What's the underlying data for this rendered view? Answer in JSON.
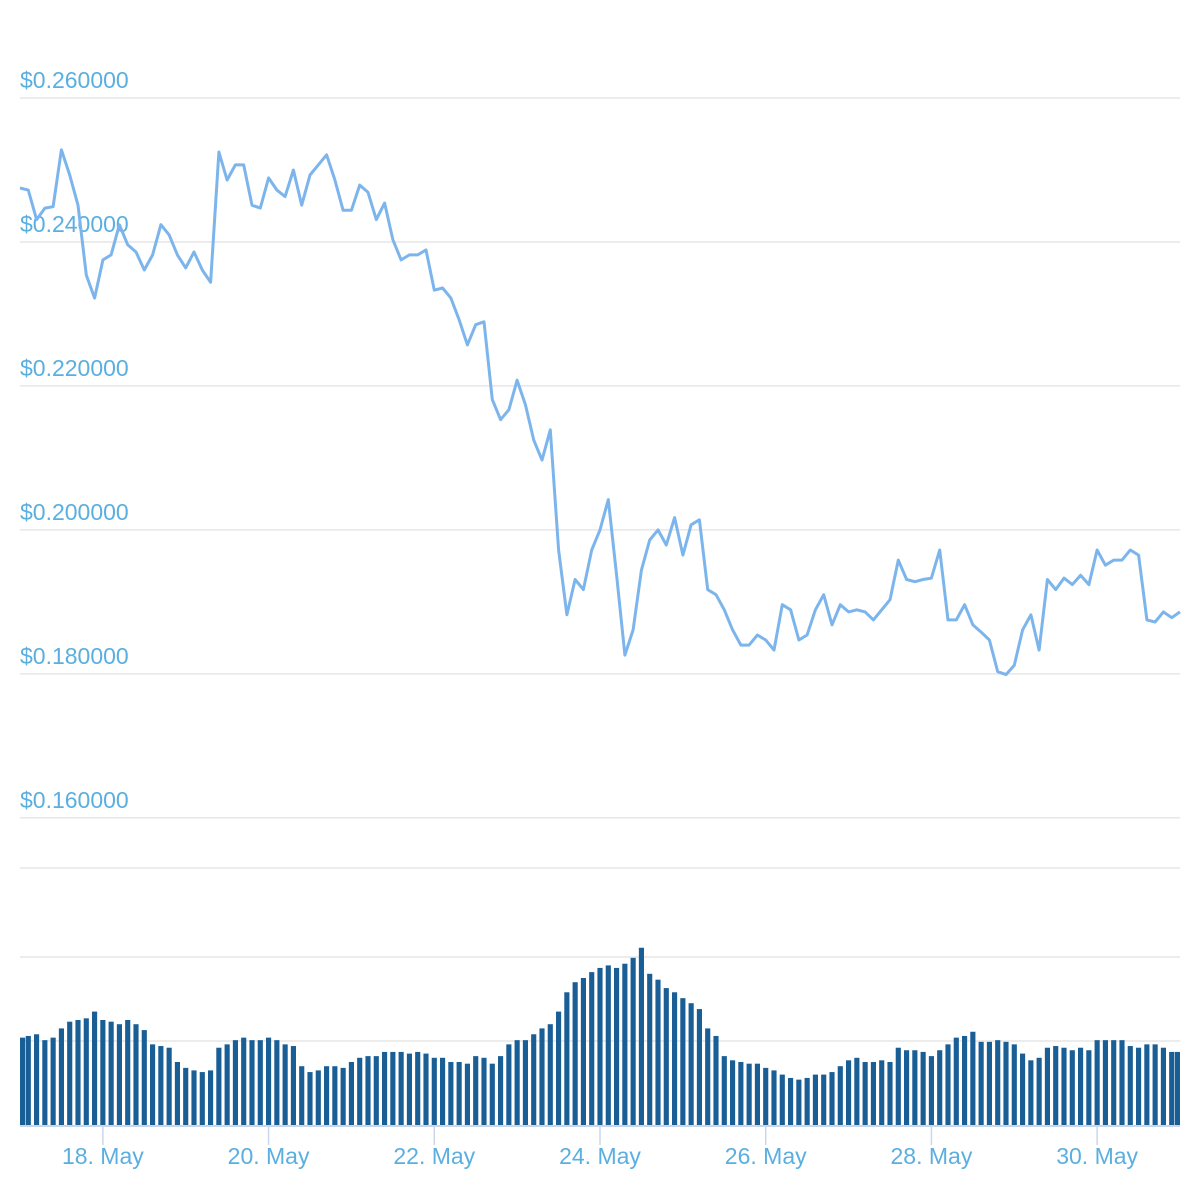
{
  "chart_data": {
    "type": "line",
    "x": [
      17,
      17.1,
      17.2,
      17.3,
      17.4,
      17.5,
      17.6,
      17.7,
      17.8,
      17.9,
      18,
      18.1,
      18.2,
      18.3,
      18.4,
      18.5,
      18.6,
      18.7,
      18.8,
      18.9,
      19,
      19.1,
      19.2,
      19.3,
      19.4,
      19.5,
      19.6,
      19.7,
      19.8,
      19.9,
      20,
      20.1,
      20.2,
      20.3,
      20.4,
      20.5,
      20.6,
      20.7,
      20.8,
      20.9,
      21,
      21.1,
      21.2,
      21.3,
      21.4,
      21.5,
      21.6,
      21.7,
      21.8,
      21.9,
      22,
      22.1,
      22.2,
      22.3,
      22.4,
      22.5,
      22.6,
      22.7,
      22.8,
      22.9,
      23,
      23.1,
      23.2,
      23.3,
      23.4,
      23.5,
      23.6,
      23.7,
      23.8,
      23.9,
      24,
      24.1,
      24.2,
      24.3,
      24.4,
      24.5,
      24.6,
      24.7,
      24.8,
      24.9,
      25,
      25.1,
      25.2,
      25.3,
      25.4,
      25.5,
      25.6,
      25.7,
      25.8,
      25.9,
      26,
      26.1,
      26.2,
      26.3,
      26.4,
      26.5,
      26.6,
      26.7,
      26.8,
      26.9,
      27,
      27.1,
      27.2,
      27.3,
      27.4,
      27.5,
      27.6,
      27.7,
      27.8,
      27.9,
      28,
      28.1,
      28.2,
      28.3,
      28.4,
      28.5,
      28.6,
      28.7,
      28.8,
      28.9,
      29,
      29.1,
      29.2,
      29.3,
      29.4,
      29.5,
      29.6,
      29.7,
      29.8,
      29.9,
      30,
      30.1,
      30.2,
      30.3,
      30.4,
      30.5,
      30.6,
      30.7,
      30.8,
      30.9,
      31
    ],
    "series": [
      {
        "color": "#7cb5ec",
        "values": [
          0.2475,
          0.2472,
          0.2431,
          0.2447,
          0.2449,
          0.2528,
          0.2493,
          0.2451,
          0.2354,
          0.2322,
          0.2375,
          0.2382,
          0.2424,
          0.2396,
          0.2386,
          0.2361,
          0.2382,
          0.2424,
          0.241,
          0.2382,
          0.2364,
          0.2386,
          0.2361,
          0.2344,
          0.2525,
          0.2486,
          0.2507,
          0.2507,
          0.2451,
          0.2447,
          0.2489,
          0.2472,
          0.2463,
          0.25,
          0.2451,
          0.2493,
          0.2507,
          0.2521,
          0.2486,
          0.2444,
          0.2444,
          0.2479,
          0.2469,
          0.2431,
          0.2454,
          0.2403,
          0.2375,
          0.2382,
          0.2382,
          0.2389,
          0.2333,
          0.2336,
          0.2322,
          0.2292,
          0.2257,
          0.2285,
          0.2289,
          0.2181,
          0.2153,
          0.2167,
          0.2208,
          0.2174,
          0.2125,
          0.2097,
          0.2139,
          0.1972,
          0.1882,
          0.1931,
          0.1917,
          0.1972,
          0.2,
          0.2042,
          0.1937,
          0.1826,
          0.1861,
          0.1944,
          0.1986,
          0.2,
          0.1979,
          0.2017,
          0.1965,
          0.2007,
          0.2014,
          0.1917,
          0.191,
          0.1889,
          0.1861,
          0.184,
          0.184,
          0.1854,
          0.1847,
          0.1833,
          0.1896,
          0.1889,
          0.1847,
          0.1854,
          0.1889,
          0.191,
          0.1868,
          0.1896,
          0.1886,
          0.1889,
          0.1886,
          0.1875,
          0.1889,
          0.1903,
          0.1958,
          0.1931,
          0.1928,
          0.1931,
          0.1933,
          0.1972,
          0.1875,
          0.1875,
          0.1896,
          0.1868,
          0.1858,
          0.1847,
          0.1803,
          0.1799,
          0.1812,
          0.1861,
          0.1882,
          0.1833,
          0.1931,
          0.1917,
          0.1933,
          0.1924,
          0.1937,
          0.1924,
          0.1972,
          0.1951,
          0.1958,
          0.1958,
          0.1972,
          0.1965,
          0.1875,
          0.1872,
          0.1886,
          0.1878,
          0.1886
        ]
      },
      {
        "color": "#1a5e96",
        "axis": "y2",
        "values": [
          1.04,
          1.06,
          1.08,
          1.01,
          1.04,
          1.15,
          1.23,
          1.25,
          1.27,
          1.35,
          1.25,
          1.23,
          1.2,
          1.25,
          1.2,
          1.13,
          0.96,
          0.94,
          0.92,
          0.75,
          0.68,
          0.65,
          0.63,
          0.65,
          0.92,
          0.96,
          1.01,
          1.04,
          1.01,
          1.01,
          1.04,
          1.01,
          0.96,
          0.94,
          0.7,
          0.63,
          0.65,
          0.7,
          0.7,
          0.68,
          0.75,
          0.8,
          0.82,
          0.82,
          0.87,
          0.87,
          0.87,
          0.85,
          0.87,
          0.85,
          0.8,
          0.8,
          0.75,
          0.75,
          0.73,
          0.82,
          0.8,
          0.73,
          0.82,
          0.96,
          1.01,
          1.01,
          1.08,
          1.15,
          1.2,
          1.35,
          1.58,
          1.7,
          1.75,
          1.82,
          1.87,
          1.9,
          1.87,
          1.92,
          1.99,
          2.11,
          1.8,
          1.73,
          1.63,
          1.58,
          1.51,
          1.45,
          1.38,
          1.15,
          1.06,
          0.82,
          0.77,
          0.75,
          0.73,
          0.73,
          0.68,
          0.65,
          0.6,
          0.56,
          0.54,
          0.56,
          0.6,
          0.6,
          0.63,
          0.7,
          0.77,
          0.8,
          0.75,
          0.75,
          0.77,
          0.75,
          0.92,
          0.89,
          0.89,
          0.87,
          0.82,
          0.89,
          0.96,
          1.04,
          1.06,
          1.11,
          0.99,
          0.99,
          1.01,
          0.99,
          0.96,
          0.85,
          0.77,
          0.8,
          0.92,
          0.94,
          0.92,
          0.89,
          0.92,
          0.89,
          1.01,
          1.01,
          1.01,
          1.01,
          0.94,
          0.92,
          0.96,
          0.96,
          0.92,
          0.87,
          0.87
        ]
      }
    ],
    "xlim": [
      17,
      31
    ],
    "xticks": [
      {
        "value": 18,
        "label": "18. May"
      },
      {
        "value": 20,
        "label": "20. May"
      },
      {
        "value": 22,
        "label": "22. May"
      },
      {
        "value": 24,
        "label": "24. May"
      },
      {
        "value": 26,
        "label": "26. May"
      },
      {
        "value": 28,
        "label": "28. May"
      },
      {
        "value": 30,
        "label": "30. May"
      }
    ],
    "ylim": [
      0.154,
      0.27
    ],
    "yticks": [
      {
        "value": 0.16,
        "label": "$0.160000"
      },
      {
        "value": 0.18,
        "label": "$0.180000"
      },
      {
        "value": 0.2,
        "label": "$0.200000"
      },
      {
        "value": 0.22,
        "label": "$0.220000"
      },
      {
        "value": 0.24,
        "label": "$0.240000"
      },
      {
        "value": 0.26,
        "label": "$0.260000"
      }
    ],
    "y2lim": [
      0,
      3
    ],
    "y2ticks": [
      1,
      2
    ],
    "grid": true
  }
}
